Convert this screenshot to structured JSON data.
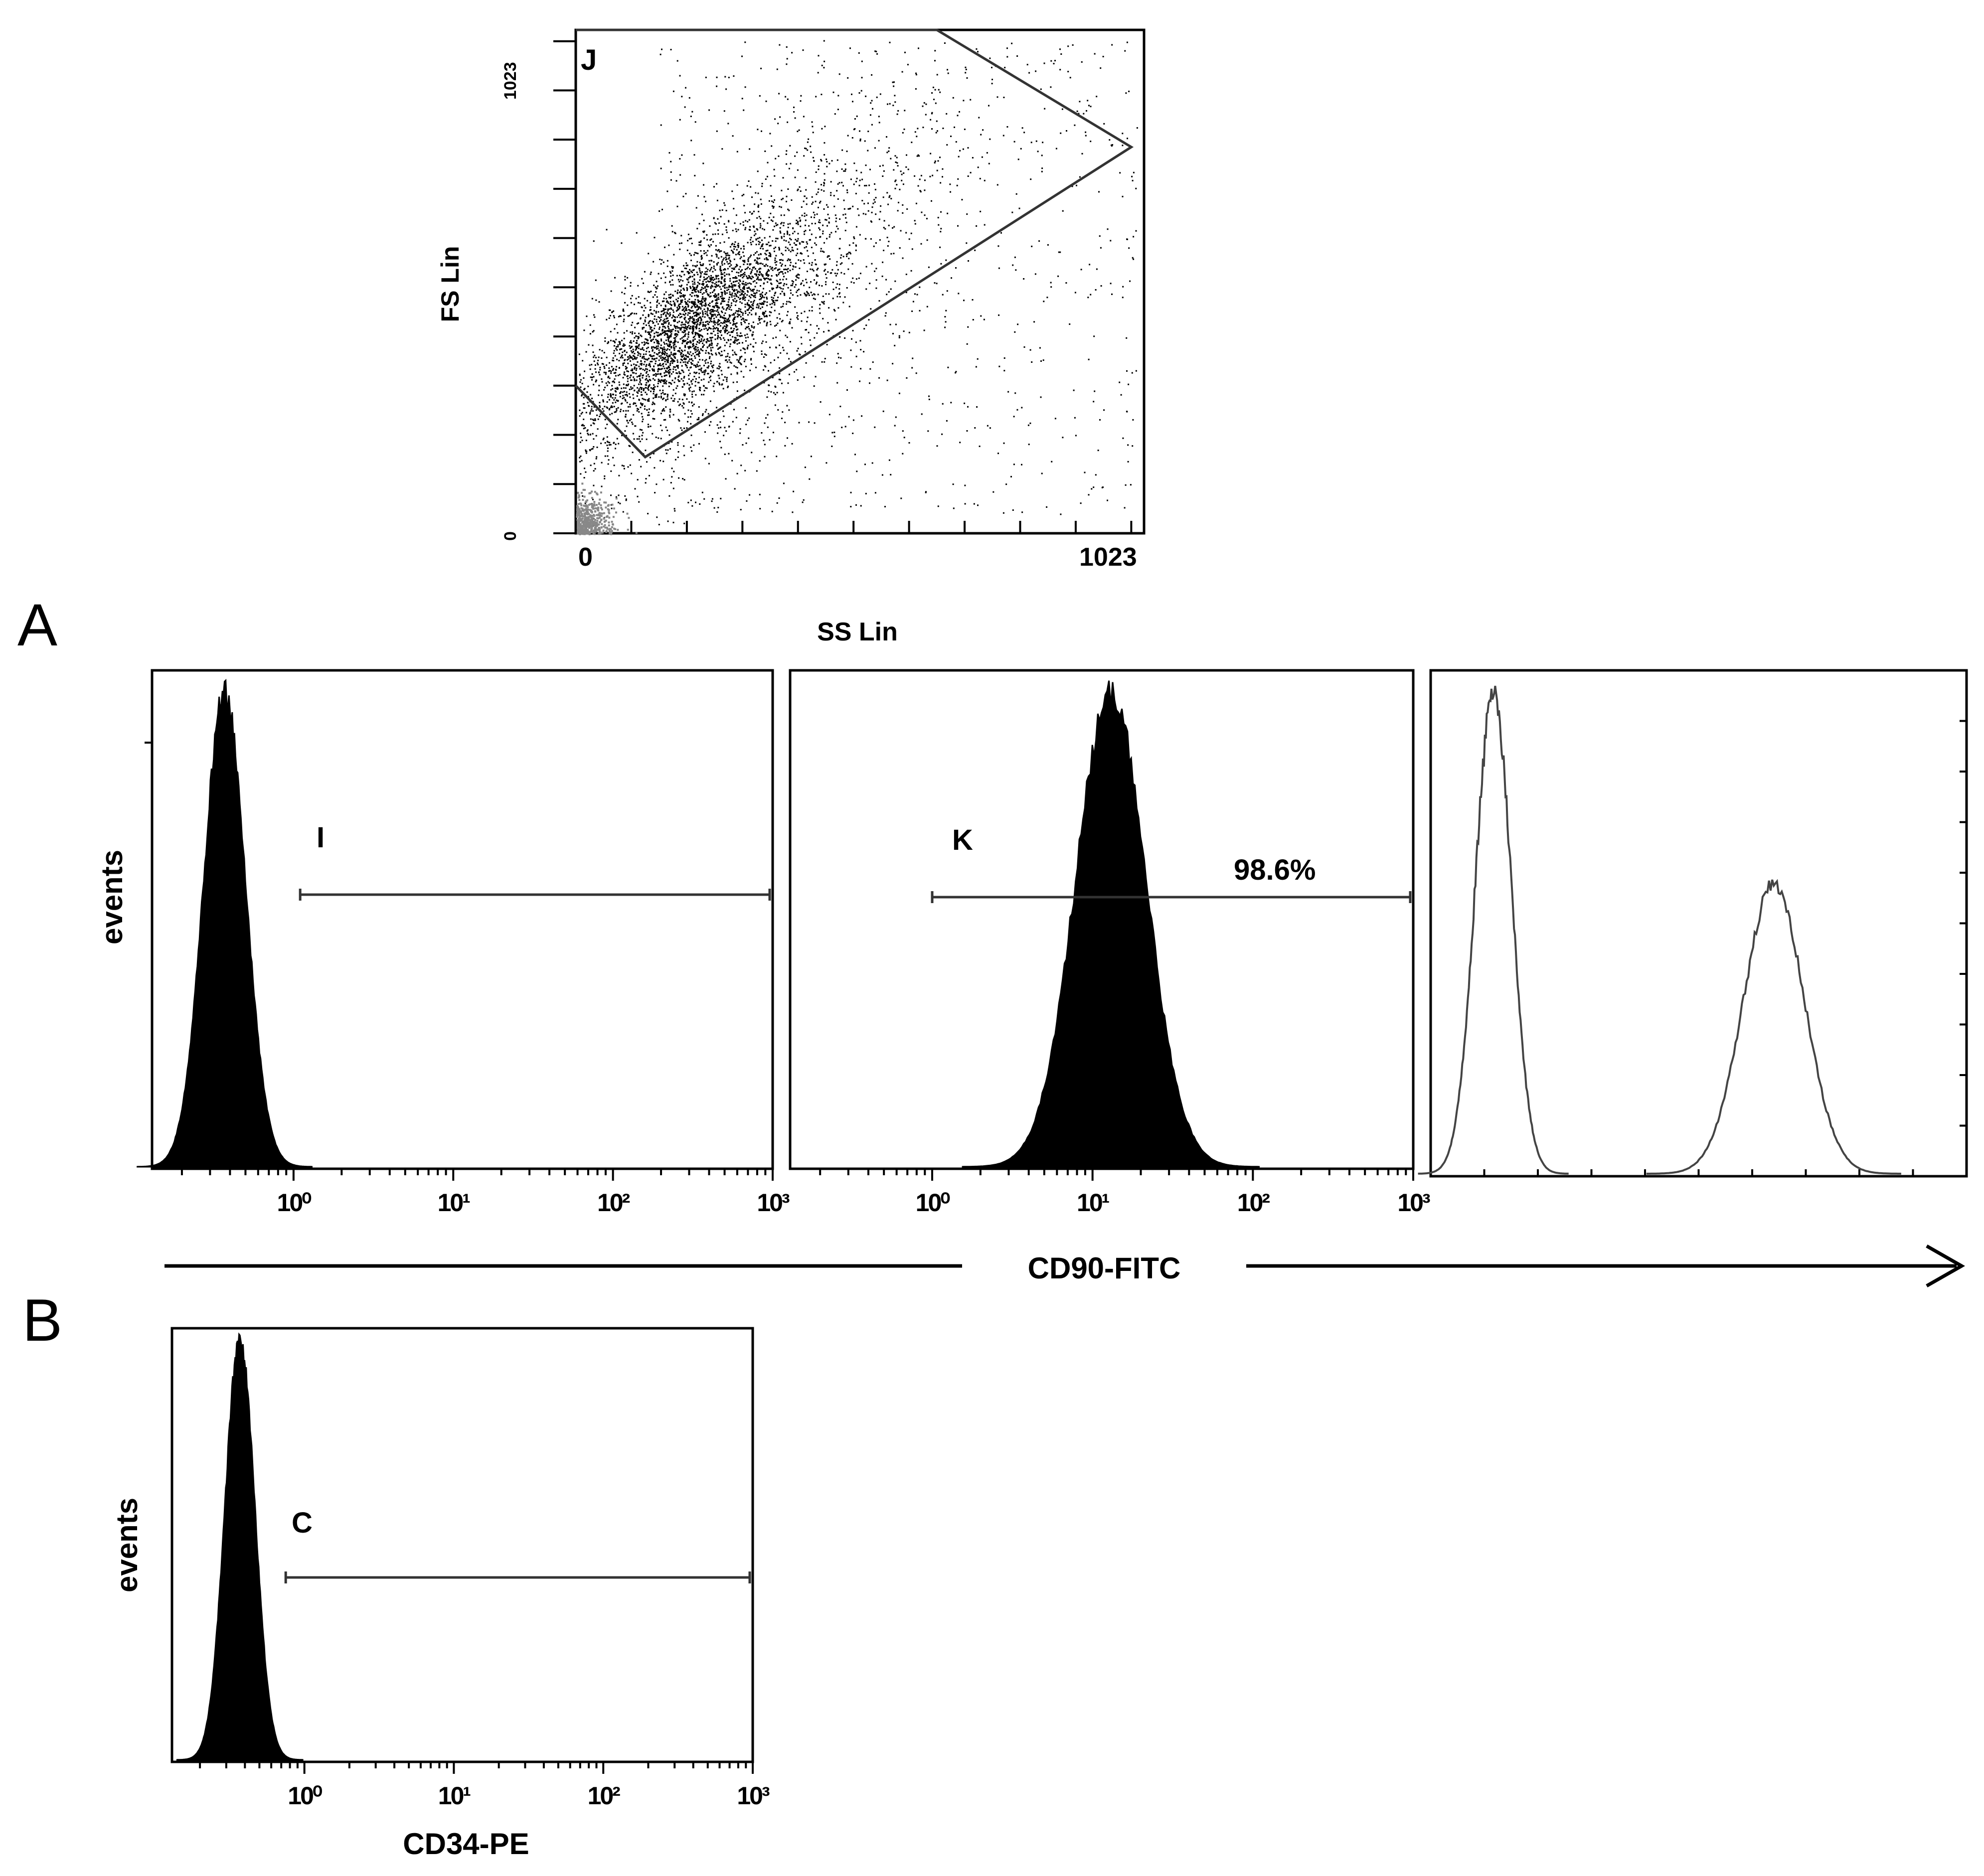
{
  "panel_letters": {
    "a": "A",
    "b": "B"
  },
  "colors": {
    "ink": "#000000",
    "gate": "#333333",
    "debris": "#888888",
    "open_trace": "#444444"
  },
  "chart_data": [
    {
      "type": "scatter",
      "gate_label": "J",
      "xlabel": "SS Lin",
      "ylabel": "FS Lin",
      "x_ticks": {
        "min": "0",
        "max": "1023"
      },
      "y_ticks": {
        "min": "0",
        "max": "1023"
      },
      "xlim": [
        0,
        1023
      ],
      "ylim": [
        0,
        1023
      ],
      "population_center": [
        200,
        420
      ],
      "gate_polygon": [
        [
          0,
          300
        ],
        [
          125,
          155
        ],
        [
          1000,
          785
        ],
        [
          650,
          1023
        ],
        [
          0,
          1023
        ]
      ]
    },
    {
      "type": "area",
      "gate_label": "I",
      "xlabel": "CD90-FITC",
      "ylabel": "events",
      "x_ticks": [
        "10⁰",
        "10¹",
        "10²",
        "10³"
      ],
      "xscale": "log",
      "xlim": [
        0.13,
        1000
      ],
      "gate_range": [
        1.1,
        1000
      ],
      "peak_x": 0.37,
      "peak_spread_decades": 0.13
    },
    {
      "type": "area",
      "gate_label": "K",
      "percent_label": "98.6%",
      "xlabel": "CD90-FITC",
      "x_ticks": [
        "10⁰",
        "10¹",
        "10²",
        "10³"
      ],
      "xscale": "log",
      "xlim": [
        0.13,
        1000
      ],
      "gate_range": [
        1.0,
        1000
      ],
      "peak_x": 13,
      "peak_spread_decades": 0.22
    },
    {
      "type": "line",
      "xscale": "log",
      "series": [
        {
          "peak_x": 0.37,
          "peak_height": 1.0,
          "spread_decades": 0.13
        },
        {
          "peak_x": 40,
          "peak_height": 0.6,
          "spread_decades": 0.22
        }
      ]
    },
    {
      "type": "area",
      "gate_label": "C",
      "xlabel": "CD34-PE",
      "ylabel": "events",
      "x_ticks": [
        "10⁰",
        "10¹",
        "10²",
        "10³"
      ],
      "xscale": "log",
      "xlim": [
        0.13,
        1000
      ],
      "gate_range": [
        0.75,
        1000
      ],
      "peak_x": 0.37,
      "peak_spread_decades": 0.1
    }
  ],
  "shared_axis_label": "CD90-FITC"
}
